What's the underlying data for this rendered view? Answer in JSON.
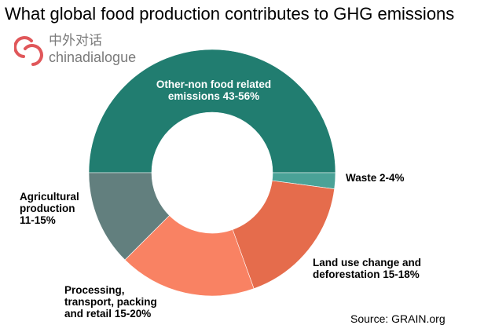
{
  "chart_data": {
    "type": "pie",
    "variant": "donut",
    "title": "What global food production contributes to GHG emissions",
    "slices": [
      {
        "label": "Other-non food related emissions 43-56%",
        "value": 50,
        "color": "#217d70"
      },
      {
        "label": "Waste 2-4%",
        "value": 2.1,
        "color": "#4aa297"
      },
      {
        "label": "Land use change and deforestation 15-18%",
        "value": 17.4,
        "color": "#e56c4c"
      },
      {
        "label": "Processing, transport, packing and retail 15-20%",
        "value": 18,
        "color": "#f98263"
      },
      {
        "label": "Agricultural production 11-15%",
        "value": 12.5,
        "color": "#627f7e"
      }
    ],
    "source": "Source: GRAIN.org"
  },
  "logo": {
    "cn": "中外对话",
    "en": "chinadialogue",
    "color": "#e0575a"
  },
  "labels": {
    "other": [
      "Other-non food related",
      "emissions 43-56%"
    ],
    "waste": [
      "Waste 2-4%"
    ],
    "land": [
      "Land use change and",
      "deforestation 15-18%"
    ],
    "processing": [
      "Processing,",
      "transport, packing",
      "and retail 15-20%"
    ],
    "agri": [
      "Agricultural",
      "production",
      "11-15%"
    ]
  }
}
